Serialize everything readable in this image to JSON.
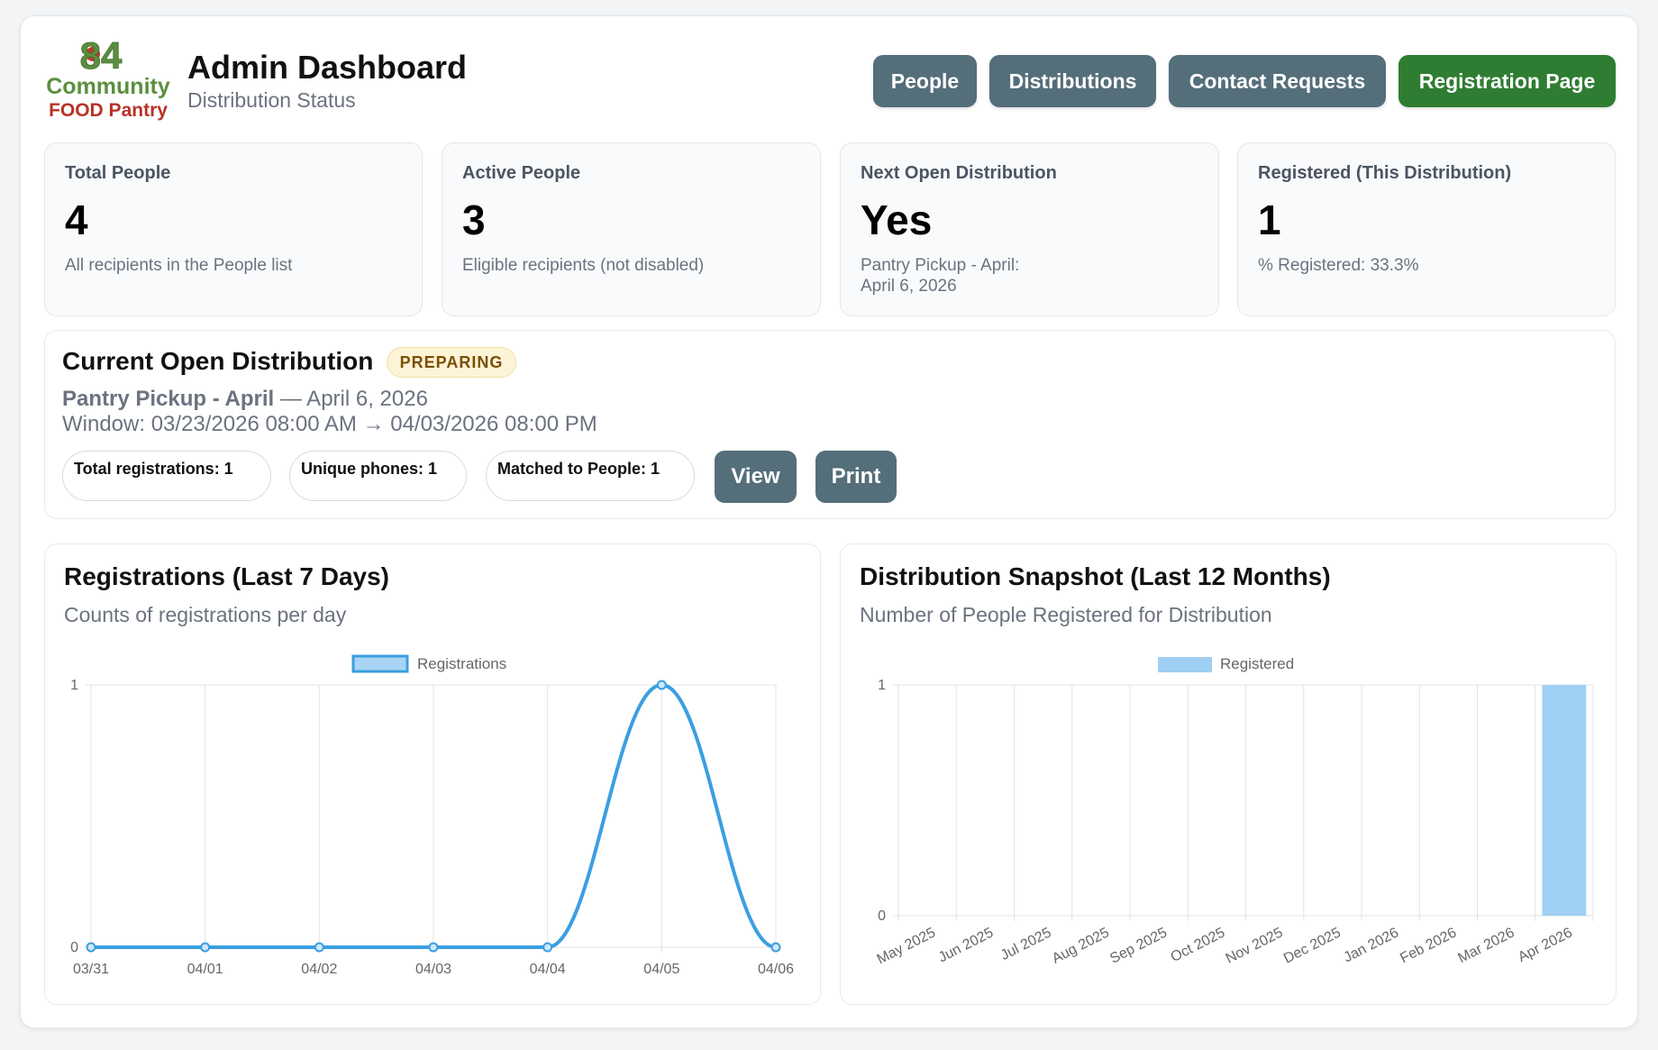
{
  "header": {
    "logo": {
      "line1": "84",
      "line2": "Community",
      "line3": "FOOD Pantry"
    },
    "title": "Admin Dashboard",
    "subtitle": "Distribution Status",
    "nav": {
      "people": "People",
      "distributions": "Distributions",
      "contact_requests": "Contact Requests",
      "registration_page": "Registration Page"
    }
  },
  "stats": [
    {
      "label": "Total People",
      "value": "4",
      "note": "All recipients in the People list",
      "note2": ""
    },
    {
      "label": "Active People",
      "value": "3",
      "note": "Eligible recipients (not disabled)",
      "note2": ""
    },
    {
      "label": "Next Open Distribution",
      "value": "Yes",
      "note": "Pantry Pickup - April:",
      "note2": "April 6, 2026"
    },
    {
      "label": "Registered (This Distribution)",
      "value": "1",
      "note": "% Registered: 33.3%",
      "note2": ""
    }
  ],
  "open_distribution": {
    "title": "Current Open Distribution",
    "status": "PREPARING",
    "name": "Pantry Pickup - April",
    "date_suffix": " — April 6, 2026",
    "window": "Window: 03/23/2026 08:00 AM → 04/03/2026 08:00 PM",
    "pills": {
      "total": "Total registrations: 1",
      "unique": "Unique phones: 1",
      "matched": "Matched to People: 1"
    },
    "view_label": "View",
    "print_label": "Print"
  },
  "registrations_panel": {
    "title": "Registrations (Last 7 Days)",
    "subtitle": "Counts of registrations per day"
  },
  "snapshot_panel": {
    "title": "Distribution Snapshot (Last 12 Months)",
    "subtitle": "Number of People Registered for Distribution"
  },
  "colors": {
    "slate": "#546e7a",
    "green": "#2e7d32",
    "line": "#3b9fe0",
    "bar": "#9fcff3"
  },
  "chart_data": [
    {
      "type": "line",
      "legend": "Registrations",
      "x": [
        "03/31",
        "04/01",
        "04/02",
        "04/03",
        "04/04",
        "04/05",
        "04/06"
      ],
      "series": [
        {
          "name": "Registrations",
          "values": [
            0,
            0,
            0,
            0,
            0,
            1,
            0
          ]
        }
      ],
      "ylim": [
        0,
        1
      ],
      "yticks": [
        "0",
        "1"
      ],
      "grid": true,
      "legend_position": "top"
    },
    {
      "type": "bar",
      "legend": "Registered",
      "categories": [
        "May 2025",
        "Jun 2025",
        "Jul 2025",
        "Aug 2025",
        "Sep 2025",
        "Oct 2025",
        "Nov 2025",
        "Dec 2025",
        "Jan 2026",
        "Feb 2026",
        "Mar 2026",
        "Apr 2026"
      ],
      "series": [
        {
          "name": "Registered",
          "values": [
            0,
            0,
            0,
            0,
            0,
            0,
            0,
            0,
            0,
            0,
            0,
            1
          ]
        }
      ],
      "ylim": [
        0,
        1
      ],
      "yticks": [
        "0",
        "1"
      ],
      "grid": true,
      "legend_position": "top"
    }
  ]
}
